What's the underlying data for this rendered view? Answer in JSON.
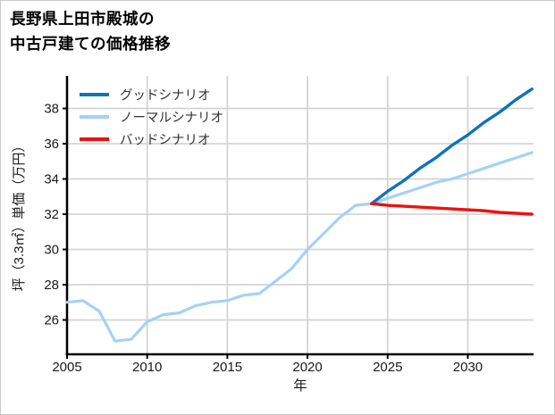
{
  "title": {
    "line1": "長野県上田市殿城の",
    "line2": "中古戸建ての価格推移"
  },
  "colors": {
    "good": "#1072ba",
    "normal": "#a6d1f5",
    "bad": "#ec1111",
    "grid": "#d4d4d4",
    "axis": "#000000",
    "tick_text": "#1a1a1a",
    "legend_text": "#333333",
    "frame_border": "#c8c8c8"
  },
  "legend": {
    "items": [
      {
        "label": "グッドシナリオ",
        "color_key": "good"
      },
      {
        "label": "ノーマルシナリオ",
        "color_key": "normal"
      },
      {
        "label": "バッドシナリオ",
        "color_key": "bad"
      }
    ]
  },
  "chart_data": {
    "type": "line",
    "title": "長野県上田市殿城の中古戸建ての価格推移",
    "xlabel": "年",
    "ylabel": "坪（3.3㎡）単価（万円）",
    "xlim": [
      2005,
      2034.1
    ],
    "ylim": [
      24.05,
      39.85
    ],
    "x_ticks": [
      2005,
      2010,
      2015,
      2020,
      2025,
      2030
    ],
    "y_ticks": [
      26,
      28,
      30,
      32,
      34,
      36,
      38
    ],
    "grid": true,
    "legend_position": "upper-left",
    "series": [
      {
        "name": "ノーマルシナリオ",
        "color_key": "normal",
        "line_width": 3.2,
        "x": [
          2005,
          2006,
          2007,
          2008,
          2009,
          2010,
          2011,
          2012,
          2013,
          2014,
          2015,
          2016,
          2017,
          2018,
          2019,
          2020,
          2021,
          2022,
          2023,
          2024,
          2025,
          2026,
          2027,
          2028,
          2029,
          2030,
          2031,
          2032,
          2033,
          2034
        ],
        "values": [
          27.0,
          27.1,
          26.5,
          24.8,
          24.9,
          25.9,
          26.3,
          26.4,
          26.8,
          27.0,
          27.1,
          27.4,
          27.5,
          28.2,
          28.9,
          30.0,
          30.9,
          31.8,
          32.5,
          32.6,
          32.9,
          33.2,
          33.5,
          33.8,
          34.0,
          34.3,
          34.6,
          34.9,
          35.2,
          35.5
        ]
      },
      {
        "name": "グッドシナリオ",
        "color_key": "good",
        "line_width": 3.4,
        "x": [
          2024,
          2025,
          2026,
          2027,
          2028,
          2029,
          2030,
          2031,
          2032,
          2033,
          2034
        ],
        "values": [
          32.6,
          33.3,
          33.9,
          34.6,
          35.2,
          35.9,
          36.5,
          37.2,
          37.8,
          38.5,
          39.1
        ]
      },
      {
        "name": "バッドシナリオ",
        "color_key": "bad",
        "line_width": 3.4,
        "x": [
          2024,
          2025,
          2026,
          2027,
          2028,
          2029,
          2030,
          2031,
          2032,
          2033,
          2034
        ],
        "values": [
          32.6,
          32.5,
          32.45,
          32.4,
          32.35,
          32.3,
          32.25,
          32.2,
          32.1,
          32.05,
          32.0
        ]
      }
    ]
  }
}
